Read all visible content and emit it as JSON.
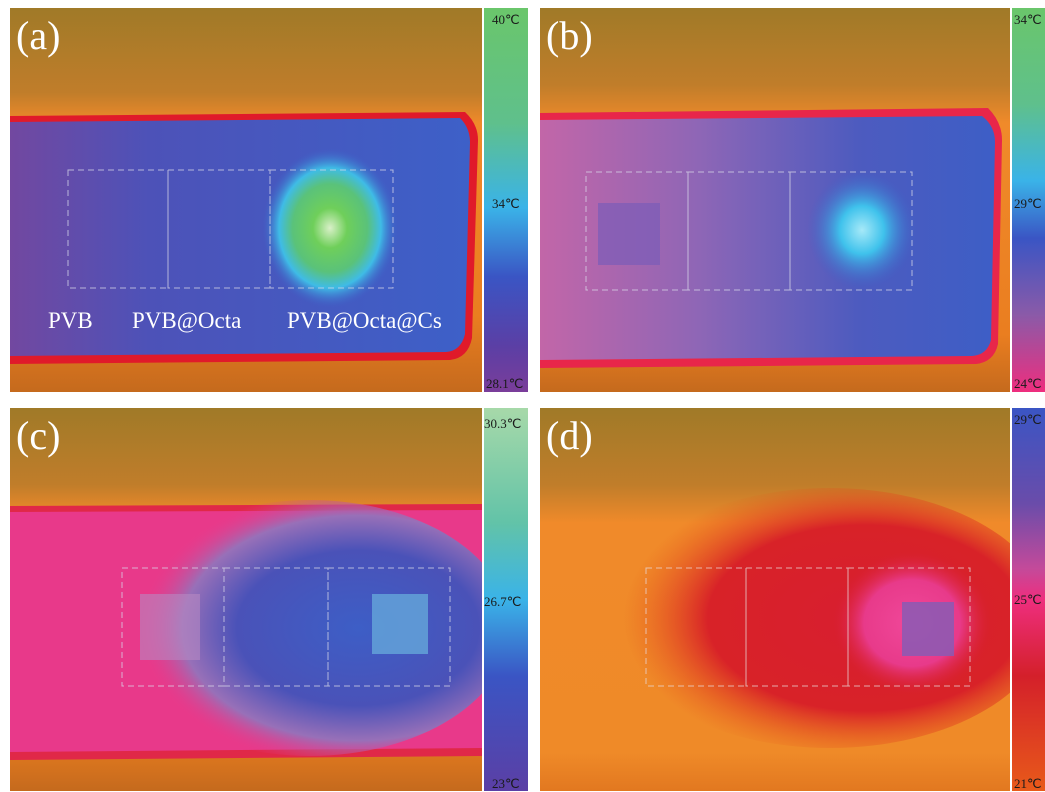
{
  "panels": {
    "a": {
      "letter": "(a)",
      "scale_max": "40℃",
      "scale_mid": "34℃",
      "scale_min": "28.1℃",
      "samples": [
        "PVB",
        "PVB@Octa",
        "PVB@Octa@Cs"
      ],
      "bar_colors": [
        "#6ac66b",
        "#3ab3e8",
        "#3a55c4",
        "#5b3fa5",
        "#7a3d9a"
      ]
    },
    "b": {
      "letter": "(b)",
      "scale_max": "34℃",
      "scale_mid": "29℃",
      "scale_min": "24℃",
      "bar_colors": [
        "#6ac66b",
        "#3ab3e8",
        "#3a55c4",
        "#8b5aa8",
        "#ee2e7e"
      ]
    },
    "c": {
      "letter": "(c)",
      "scale_max": "30.3℃",
      "scale_mid": "26.7℃",
      "scale_min": "23℃",
      "bar_colors": [
        "#a7d9a9",
        "#62c3a8",
        "#3ab3e8",
        "#3a55c4",
        "#5b3fa5"
      ]
    },
    "d": {
      "letter": "(d)",
      "scale_max": "29℃",
      "scale_mid": "25℃",
      "scale_min": "21℃",
      "bar_colors": [
        "#3a55c4",
        "#8b5aa8",
        "#ee2e7e",
        "#d4202a",
        "#e85a1a"
      ]
    }
  }
}
